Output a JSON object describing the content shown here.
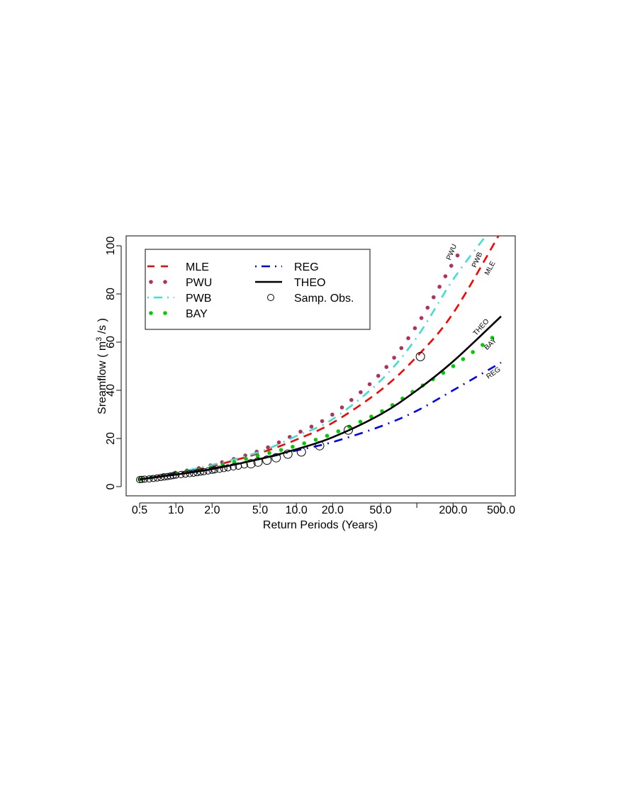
{
  "chart_data": {
    "type": "line",
    "xlabel": "Return Periods (Years)",
    "ylabel_main": "Sreamflow ( m",
    "ylabel_sup": "3",
    "ylabel_tail": " /s )",
    "xscale": "log",
    "xlim": [
      0.45,
      600
    ],
    "ylim": [
      -4,
      104
    ],
    "grid": false,
    "legend_placement": "top-left",
    "x_ticks": [
      {
        "value": 0.5,
        "label": "0.5"
      },
      {
        "value": 1,
        "label": "1.0"
      },
      {
        "value": 2,
        "label": "2.0"
      },
      {
        "value": 5,
        "label": "5.0"
      },
      {
        "value": 10,
        "label": "10.0"
      },
      {
        "value": 20,
        "label": "20.0"
      },
      {
        "value": 50,
        "label": "50.0"
      },
      {
        "value": 100,
        "label": ""
      },
      {
        "value": 200,
        "label": "200.0"
      },
      {
        "value": 500,
        "label": "500.0"
      }
    ],
    "y_ticks": [
      {
        "value": 0,
        "label": "0"
      },
      {
        "value": 20,
        "label": "20"
      },
      {
        "value": 40,
        "label": "40"
      },
      {
        "value": 60,
        "label": "60"
      },
      {
        "value": 80,
        "label": "80"
      },
      {
        "value": 100,
        "label": "100"
      }
    ],
    "series": [
      {
        "name": "MLE",
        "style": "dashed",
        "color": "#ff0000",
        "end_label": "MLE",
        "x": [
          0.5,
          1,
          2,
          5,
          10,
          20,
          50,
          100,
          200,
          500
        ],
        "y": [
          3,
          5.5,
          8.5,
          14,
          19.5,
          26.5,
          40,
          54,
          72,
          106
        ]
      },
      {
        "name": "PWU",
        "style": "dots",
        "color": "#b03060",
        "end_label": "PWU",
        "x": [
          0.5,
          1,
          2,
          5,
          10,
          20,
          50,
          100,
          200,
          247
        ],
        "y": [
          3,
          5.8,
          9,
          15,
          22,
          30,
          47,
          67,
          93,
          100
        ]
      },
      {
        "name": "PWB",
        "style": "dotdash",
        "color": "#40e0d0",
        "end_label": "PWB",
        "x": [
          0.5,
          1,
          2,
          5,
          10,
          20,
          50,
          100,
          200,
          400
        ],
        "y": [
          3,
          5.8,
          9,
          14.5,
          21,
          28,
          44,
          62,
          86,
          106
        ]
      },
      {
        "name": "BAY",
        "style": "dots",
        "color": "#00cd00",
        "end_label": "BAY",
        "x": [
          0.5,
          1,
          2,
          5,
          10,
          20,
          50,
          100,
          200,
          500
        ],
        "y": [
          3,
          5.5,
          8,
          13,
          17,
          22,
          31,
          40.5,
          50,
          64.5
        ]
      },
      {
        "name": "REG",
        "style": "dotdash",
        "color": "#0000ff",
        "end_label": "REG",
        "x": [
          0.5,
          1,
          2,
          5,
          10,
          20,
          50,
          100,
          200,
          500
        ],
        "y": [
          3,
          5.2,
          7.5,
          11.5,
          15,
          18.5,
          25,
          31.5,
          40,
          51.5
        ]
      },
      {
        "name": "THEO",
        "style": "solid",
        "color": "#000000",
        "end_label": "THEO",
        "x": [
          0.5,
          1,
          2,
          5,
          10,
          20,
          50,
          100,
          200,
          500
        ],
        "y": [
          3,
          5,
          7.3,
          11.5,
          15.5,
          20.5,
          30,
          40,
          52,
          70.7
        ]
      },
      {
        "name": "Samp. Obs.",
        "style": "circles",
        "color": "#000000",
        "x": [
          107,
          27,
          15.6,
          11,
          8.5,
          6.8,
          5.7,
          4.8,
          4.2,
          3.7,
          3.3,
          3.0,
          2.7,
          2.5,
          2.3,
          2.1,
          2.0,
          1.85,
          1.7,
          1.6,
          1.5,
          1.4,
          1.3,
          1.2,
          1.1,
          1.0,
          0.95,
          0.9,
          0.85,
          0.8,
          0.75,
          0.7,
          0.65,
          0.6,
          0.55,
          0.52,
          0.5
        ],
        "y": [
          54,
          23.5,
          17,
          14.4,
          13.5,
          12,
          11,
          10.2,
          9.5,
          9,
          8.5,
          8.2,
          7.8,
          7.5,
          7.2,
          7,
          6.8,
          6.5,
          6.2,
          6,
          5.8,
          5.6,
          5.4,
          5.2,
          5,
          4.8,
          4.6,
          4.4,
          4.2,
          4,
          3.8,
          3.6,
          3.4,
          3.2,
          3.1,
          3.0,
          2.9
        ]
      }
    ],
    "legend": {
      "col1": [
        "MLE",
        "PWU",
        "PWB",
        "BAY"
      ],
      "col2": [
        "REG",
        "THEO",
        "Samp. Obs."
      ]
    }
  }
}
